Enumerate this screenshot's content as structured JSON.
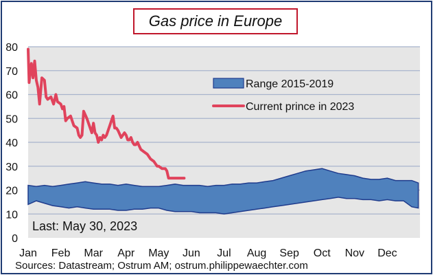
{
  "chart_data": {
    "type": "area",
    "title": "Gas price in Europe",
    "xlabel": "",
    "ylabel": "",
    "ylim": [
      0,
      80
    ],
    "yticks": [
      "0",
      "10",
      "20",
      "30",
      "40",
      "50",
      "60",
      "70",
      "80"
    ],
    "xticks": [
      "Jan",
      "Feb",
      "Mar",
      "Apr",
      "May",
      "Jun",
      "Jul",
      "Aug",
      "Sep",
      "Oct",
      "Nov",
      "Dec"
    ],
    "grid": true,
    "legend_position": "top-right",
    "colors": {
      "range_fill": "#4f81bd",
      "range_edge": "#1f3b8c",
      "line": "#e0435c",
      "plot_bg": "#e6e6e6",
      "grid": "#a8b4cc"
    },
    "series": [
      {
        "name": "Range 2015-2019",
        "kind": "band",
        "x_month": [
          0,
          0.25,
          0.5,
          0.75,
          1,
          1.25,
          1.5,
          1.75,
          2,
          2.25,
          2.5,
          2.75,
          3,
          3.25,
          3.5,
          3.75,
          4,
          4.25,
          4.5,
          4.75,
          5,
          5.25,
          5.5,
          5.75,
          6,
          6.25,
          6.5,
          6.75,
          7,
          7.25,
          7.5,
          7.75,
          8,
          8.25,
          8.5,
          8.75,
          9,
          9.25,
          9.5,
          9.75,
          10,
          10.25,
          10.5,
          10.75,
          11,
          11.25,
          11.5,
          11.75,
          11.95
        ],
        "low": [
          14,
          15.5,
          14.5,
          13.5,
          13,
          12.5,
          13,
          12.5,
          12,
          12,
          12,
          11.5,
          11.5,
          12,
          12,
          12.5,
          12.5,
          11.5,
          11,
          11,
          11,
          10.5,
          10.5,
          10.5,
          10,
          10.5,
          11,
          11.5,
          12,
          12.5,
          13,
          13.5,
          14,
          14.5,
          15,
          15.5,
          16,
          16.5,
          17,
          16.5,
          16.5,
          16,
          16,
          15.5,
          16,
          15.5,
          15.5,
          13,
          12.5
        ],
        "high": [
          22,
          21.5,
          22,
          21.5,
          22,
          22.5,
          23,
          23.5,
          23,
          22.5,
          22.5,
          22,
          22.5,
          22,
          21.5,
          21.5,
          21.5,
          22,
          22.5,
          22,
          22,
          22,
          21.5,
          22,
          22,
          22.5,
          22.5,
          23,
          23,
          23.5,
          24,
          25,
          26,
          27,
          28,
          28.5,
          29,
          28,
          27,
          26.5,
          26,
          25,
          24.5,
          24.5,
          25,
          24,
          24,
          24,
          23
        ]
      },
      {
        "name": "Current prince in 2023",
        "kind": "line",
        "x_month": [
          0,
          0.03,
          0.1,
          0.15,
          0.2,
          0.25,
          0.3,
          0.35,
          0.42,
          0.5,
          0.55,
          0.6,
          0.7,
          0.78,
          0.85,
          0.9,
          1,
          1.05,
          1.1,
          1.15,
          1.2,
          1.3,
          1.35,
          1.4,
          1.5,
          1.55,
          1.6,
          1.65,
          1.7,
          1.8,
          1.9,
          1.95,
          2,
          2.05,
          2.1,
          2.15,
          2.2,
          2.25,
          2.3,
          2.35,
          2.4,
          2.45,
          2.5,
          2.55,
          2.6,
          2.65,
          2.7,
          2.75,
          2.85,
          2.95,
          3.0,
          3.05,
          3.1,
          3.15,
          3.2,
          3.25,
          3.3,
          3.35,
          3.45,
          3.55,
          3.65,
          3.75,
          3.85,
          3.95,
          4.0,
          4.1,
          4.2,
          4.25,
          4.3,
          4.35,
          4.4,
          4.45,
          4.55,
          4.62,
          4.7,
          4.78
        ],
        "values": [
          79,
          65,
          73,
          67,
          74,
          66,
          63,
          56,
          67,
          66,
          59,
          58,
          59,
          56,
          60,
          57,
          56,
          54,
          55,
          49,
          50,
          51,
          49,
          47,
          46,
          43,
          42,
          43,
          53,
          50,
          46,
          44,
          48,
          44,
          43,
          40,
          42,
          41,
          43,
          42,
          43,
          45,
          47,
          49,
          51,
          46,
          46,
          45,
          42,
          44,
          43,
          41,
          41,
          42,
          40,
          39,
          39,
          40,
          37,
          36,
          35,
          33,
          32,
          30,
          30,
          29,
          29,
          28,
          25,
          25,
          25,
          25,
          25,
          25,
          25,
          25
        ]
      }
    ],
    "annotations": [
      "Last: May 30, 2023"
    ],
    "source": "Sources: Datastream;  Ostrum  AM; ostrum.philippewaechter.com"
  }
}
